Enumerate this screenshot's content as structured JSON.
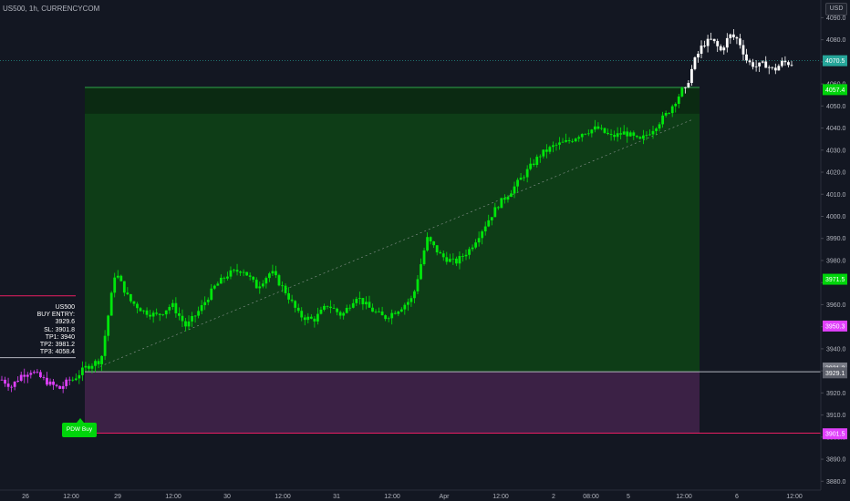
{
  "header": {
    "title": "US500, 1h, CURRENCYCOM",
    "currency": "USD"
  },
  "info_box": {
    "lines": [
      "US500",
      "BUY ENTRY: 3929.6",
      "SL: 3901.8",
      "TP1: 3940",
      "TP2: 3981.2",
      "TP3: 4058.4"
    ]
  },
  "buy_tag": "PDW Buy",
  "chart_data": {
    "type": "candlestick",
    "title": "US500, 1h, CURRENCYCOM",
    "y_axis": {
      "ylim": [
        3876,
        4098
      ],
      "ticks": [
        3880.0,
        3890.0,
        3900.0,
        3910.0,
        3920.0,
        3930.0,
        3940.0,
        3950.0,
        3960.0,
        3970.0,
        3980.0,
        3990.0,
        4000.0,
        4010.0,
        4020.0,
        4030.0,
        4040.0,
        4050.0,
        4060.0,
        4070.0,
        4080.0,
        4090.0
      ]
    },
    "x_axis": {
      "labels": [
        "26",
        "12:00",
        "29",
        "12:00",
        "30",
        "12:00",
        "31",
        "12:00",
        "Apr",
        "12:00",
        "2",
        "08:00",
        "5",
        "12:00",
        "6",
        "12:00"
      ]
    },
    "price_labels": [
      {
        "value": "4070.5",
        "color": "#26a69a"
      },
      {
        "value": "4057.4",
        "color": "#00d40b"
      },
      {
        "value": "3971.5",
        "color": "#00d40b"
      },
      {
        "value": "3950.3",
        "color": "#e040fb"
      },
      {
        "value": "3931.3",
        "color": "#787b86"
      },
      {
        "value": "3929.1",
        "color": "#5d606b"
      },
      {
        "value": "3901.5",
        "color": "#e040fb"
      }
    ],
    "levels": {
      "entry": 3929.6,
      "stop_loss": 3901.8,
      "take_profit": 4058.4,
      "profit_zone_inner_top": 4046.5,
      "info_line_upper": 3964,
      "info_line_lower": 3936,
      "last_price": 4070.5
    },
    "colors": {
      "up": "#00e60b",
      "down": "#00e60b",
      "pre_signal": "#e040fb",
      "post_target": "#ffffff",
      "profit_zone": "#0e3d17",
      "loss_zone": "#3b2145",
      "background": "#131722"
    },
    "segments": [
      {
        "color": "pre_signal",
        "count": 22,
        "path": [
          3926,
          3923,
          3928,
          3930,
          3927,
          3924,
          3922,
          3926
        ]
      },
      {
        "color": "up",
        "count": 190,
        "path": [
          3926,
          3932,
          3935,
          3975,
          3962,
          3957,
          3955,
          3960,
          3950,
          3958,
          3968,
          3974,
          3976,
          3968,
          3975,
          3966,
          3955,
          3953,
          3960,
          3955,
          3964,
          3958,
          3954,
          3958,
          3963,
          3990,
          3982,
          3979,
          3985,
          3995,
          4005,
          4012,
          4020,
          4028,
          4032,
          4034,
          4038,
          4040,
          4036,
          4038,
          4034,
          4040,
          4047,
          4057
        ]
      },
      {
        "color": "post_target",
        "count": 34,
        "path": [
          4057,
          4070,
          4078,
          4080,
          4075,
          4082,
          4080,
          4070,
          4068,
          4069,
          4066,
          4070,
          4069
        ]
      }
    ]
  }
}
